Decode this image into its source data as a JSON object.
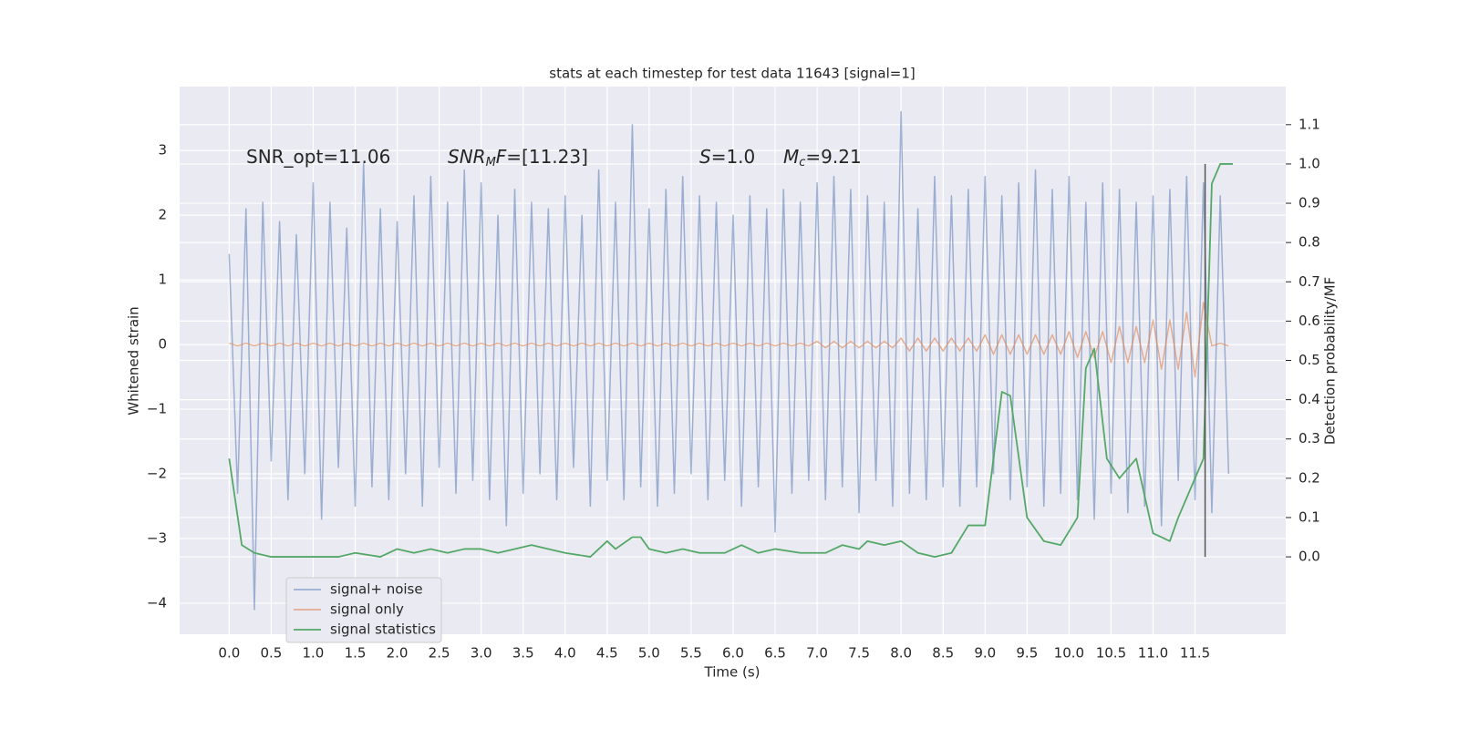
{
  "chart_data": {
    "type": "line",
    "title": "stats at each timestep for test data 11643 [signal=1]",
    "xlabel": "Time (s)",
    "ylabel": "Whitened strain",
    "y2label": "Detection probability/MF",
    "annotations": [
      [
        {
          "text": "SNR_opt=11.06"
        }
      ],
      [
        {
          "text": "SNR",
          "italic": true
        },
        {
          "text": "M",
          "italic": true,
          "sub": true
        },
        {
          "text": "F",
          "italic": true
        },
        {
          "text": "=[11.23]"
        }
      ],
      [
        {
          "text": "S",
          "italic": true
        },
        {
          "text": "=1.0"
        }
      ],
      [
        {
          "text": "M",
          "italic": true
        },
        {
          "text": "c",
          "italic": true,
          "sub": true
        },
        {
          "text": "=9.21"
        }
      ]
    ],
    "xlim": [
      -0.59,
      12.58
    ],
    "ylim": [
      -4.48,
      3.99
    ],
    "y2lim": [
      -0.197,
      1.197
    ],
    "xticks": [
      {
        "value": 0,
        "label": "0.0"
      },
      {
        "value": 0.5,
        "label": "0.5"
      },
      {
        "value": 1,
        "label": "1.0"
      },
      {
        "value": 1.5,
        "label": "1.5"
      },
      {
        "value": 2,
        "label": "2.0"
      },
      {
        "value": 2.5,
        "label": "2.5"
      },
      {
        "value": 3,
        "label": "3.0"
      },
      {
        "value": 3.5,
        "label": "3.5"
      },
      {
        "value": 4,
        "label": "4.0"
      },
      {
        "value": 4.5,
        "label": "4.5"
      },
      {
        "value": 5,
        "label": "5.0"
      },
      {
        "value": 5.5,
        "label": "5.5"
      },
      {
        "value": 6,
        "label": "6.0"
      },
      {
        "value": 6.5,
        "label": "6.5"
      },
      {
        "value": 7,
        "label": "7.0"
      },
      {
        "value": 7.5,
        "label": "7.5"
      },
      {
        "value": 8,
        "label": "8.0"
      },
      {
        "value": 8.5,
        "label": "8.5"
      },
      {
        "value": 9,
        "label": "9.0"
      },
      {
        "value": 9.5,
        "label": "9.5"
      },
      {
        "value": 10,
        "label": "10.0"
      },
      {
        "value": 10.5,
        "label": "10.5"
      },
      {
        "value": 11,
        "label": "11.0"
      },
      {
        "value": 11.5,
        "label": "11.5"
      }
    ],
    "yticks": [
      {
        "value": -4,
        "label": "−4"
      },
      {
        "value": -3,
        "label": "−3"
      },
      {
        "value": -2,
        "label": "−2"
      },
      {
        "value": -1,
        "label": "−1"
      },
      0,
      1,
      2,
      3
    ],
    "y2ticks": [
      {
        "value": 0,
        "label": "0.0"
      },
      {
        "value": 0.1,
        "label": "0.1"
      },
      {
        "value": 0.2,
        "label": "0.2"
      },
      {
        "value": 0.3,
        "label": "0.3"
      },
      {
        "value": 0.4,
        "label": "0.4"
      },
      {
        "value": 0.5,
        "label": "0.5"
      },
      {
        "value": 0.6,
        "label": "0.6"
      },
      {
        "value": 0.7,
        "label": "0.7"
      },
      {
        "value": 0.8,
        "label": "0.8"
      },
      {
        "value": 0.9,
        "label": "0.9"
      },
      {
        "value": 1,
        "label": "1.0"
      },
      {
        "value": 1.1,
        "label": "1.1"
      }
    ],
    "grid": true,
    "legend": "lower left",
    "x": [
      0.0,
      0.1,
      0.2,
      0.3,
      0.4,
      0.5,
      0.6,
      0.7,
      0.8,
      0.9,
      1.0,
      1.1,
      1.2,
      1.3,
      1.4,
      1.5,
      1.6,
      1.7,
      1.8,
      1.9,
      2.0,
      2.1,
      2.2,
      2.3,
      2.4,
      2.5,
      2.6,
      2.7,
      2.8,
      2.9,
      3.0,
      3.1,
      3.2,
      3.3,
      3.4,
      3.5,
      3.6,
      3.7,
      3.8,
      3.9,
      4.0,
      4.1,
      4.2,
      4.3,
      4.4,
      4.5,
      4.6,
      4.7,
      4.8,
      4.9,
      5.0,
      5.1,
      5.2,
      5.3,
      5.4,
      5.5,
      5.6,
      5.7,
      5.8,
      5.9,
      6.0,
      6.1,
      6.2,
      6.3,
      6.4,
      6.5,
      6.6,
      6.7,
      6.8,
      6.9,
      7.0,
      7.1,
      7.2,
      7.3,
      7.4,
      7.5,
      7.6,
      7.7,
      7.8,
      7.9,
      8.0,
      8.1,
      8.2,
      8.3,
      8.4,
      8.5,
      8.6,
      8.7,
      8.8,
      8.9,
      9.0,
      9.1,
      9.2,
      9.3,
      9.4,
      9.5,
      9.6,
      9.7,
      9.8,
      9.9,
      10.0,
      10.1,
      10.2,
      10.3,
      10.4,
      10.5,
      10.6,
      10.7,
      10.8,
      10.9,
      11.0,
      11.1,
      11.2,
      11.3,
      11.4,
      11.5,
      11.6,
      11.7,
      11.8,
      11.9
    ],
    "series": [
      {
        "name": "signal+ noise",
        "color": "#4c72b0",
        "opacity": 0.5,
        "values": [
          1.4,
          -2.3,
          2.1,
          -4.1,
          2.2,
          -1.8,
          1.9,
          -2.4,
          1.7,
          -2.0,
          2.5,
          -2.7,
          2.2,
          -1.9,
          1.8,
          -2.5,
          2.8,
          -2.2,
          2.1,
          -2.4,
          1.9,
          -2.0,
          2.3,
          -2.5,
          2.6,
          -1.9,
          2.2,
          -2.3,
          2.7,
          -2.1,
          2.5,
          -2.4,
          2.0,
          -2.8,
          2.4,
          -2.3,
          2.2,
          -2.0,
          2.1,
          -2.4,
          2.3,
          -1.9,
          2.0,
          -2.5,
          2.7,
          -2.1,
          2.2,
          -2.4,
          3.4,
          -2.2,
          2.1,
          -2.5,
          2.4,
          -2.3,
          2.6,
          -2.0,
          2.3,
          -2.4,
          2.2,
          -2.1,
          2.0,
          -2.5,
          2.3,
          -2.2,
          2.1,
          -2.9,
          2.4,
          -2.3,
          2.2,
          -2.1,
          2.5,
          -2.4,
          2.6,
          -2.2,
          2.4,
          -2.6,
          2.3,
          -2.1,
          2.2,
          -2.5,
          3.6,
          -2.3,
          2.1,
          -2.4,
          2.6,
          -2.2,
          2.3,
          -2.5,
          2.4,
          -2.2,
          2.6,
          -2.0,
          2.3,
          -2.4,
          2.5,
          -2.2,
          2.7,
          -2.5,
          2.4,
          -2.3,
          2.6,
          -2.4,
          2.2,
          -2.7,
          2.5,
          -2.3,
          2.4,
          -2.6,
          2.2,
          -2.5,
          2.3,
          -2.8,
          2.4,
          -2.1,
          2.6,
          -2.4,
          2.5,
          -2.6,
          2.3,
          -2.0
        ]
      },
      {
        "name": "signal only",
        "color": "#dd8452",
        "opacity": 0.6,
        "values": [
          0.02,
          -0.02,
          0.02,
          -0.02,
          0.02,
          -0.02,
          0.02,
          -0.02,
          0.02,
          -0.02,
          0.02,
          -0.02,
          0.02,
          -0.02,
          0.02,
          -0.02,
          0.02,
          -0.02,
          0.02,
          -0.02,
          0.02,
          -0.02,
          0.02,
          -0.02,
          0.02,
          -0.02,
          0.02,
          -0.02,
          0.02,
          -0.02,
          0.02,
          -0.02,
          0.02,
          -0.02,
          0.02,
          -0.02,
          0.02,
          -0.02,
          0.02,
          -0.02,
          0.02,
          -0.02,
          0.02,
          -0.02,
          0.02,
          -0.02,
          0.02,
          -0.02,
          0.02,
          -0.02,
          0.02,
          -0.02,
          0.02,
          -0.02,
          0.02,
          -0.02,
          0.02,
          -0.02,
          0.02,
          -0.02,
          0.02,
          -0.02,
          0.02,
          -0.02,
          0.02,
          -0.02,
          0.02,
          -0.02,
          0.02,
          -0.02,
          0.05,
          -0.05,
          0.05,
          -0.05,
          0.05,
          -0.05,
          0.05,
          -0.05,
          0.05,
          -0.05,
          0.1,
          -0.1,
          0.1,
          -0.1,
          0.1,
          -0.1,
          0.1,
          -0.1,
          0.1,
          -0.1,
          0.15,
          -0.15,
          0.15,
          -0.15,
          0.15,
          -0.15,
          0.15,
          -0.15,
          0.15,
          -0.15,
          0.2,
          -0.2,
          0.2,
          -0.2,
          0.2,
          -0.28,
          0.28,
          -0.28,
          0.28,
          -0.28,
          0.38,
          -0.38,
          0.38,
          -0.38,
          0.5,
          -0.5,
          0.65,
          -0.02,
          0.02,
          -0.02
        ]
      },
      {
        "name": "signal statistics",
        "color": "#55a868",
        "axis": "y2",
        "x": [
          0.0,
          0.15,
          0.3,
          0.5,
          0.8,
          1.0,
          1.3,
          1.5,
          1.8,
          2.0,
          2.2,
          2.4,
          2.6,
          2.8,
          3.0,
          3.2,
          3.4,
          3.6,
          3.8,
          4.0,
          4.3,
          4.5,
          4.6,
          4.8,
          4.9,
          5.0,
          5.2,
          5.4,
          5.6,
          5.9,
          6.1,
          6.3,
          6.5,
          6.8,
          7.1,
          7.3,
          7.5,
          7.6,
          7.8,
          8.0,
          8.2,
          8.4,
          8.6,
          8.8,
          9.0,
          9.2,
          9.3,
          9.5,
          9.7,
          9.9,
          10.1,
          10.2,
          10.3,
          10.45,
          10.6,
          10.8,
          11.0,
          11.2,
          11.3,
          11.5,
          11.6,
          11.7,
          11.8,
          11.95
        ],
        "values": [
          0.25,
          0.03,
          0.01,
          0.0,
          0.0,
          0.0,
          0.0,
          0.01,
          0.0,
          0.02,
          0.01,
          0.02,
          0.01,
          0.02,
          0.02,
          0.01,
          0.02,
          0.03,
          0.02,
          0.01,
          0.0,
          0.04,
          0.02,
          0.05,
          0.05,
          0.02,
          0.01,
          0.02,
          0.01,
          0.01,
          0.03,
          0.01,
          0.02,
          0.01,
          0.01,
          0.03,
          0.02,
          0.04,
          0.03,
          0.04,
          0.01,
          0.0,
          0.01,
          0.08,
          0.08,
          0.42,
          0.41,
          0.1,
          0.04,
          0.03,
          0.1,
          0.48,
          0.53,
          0.25,
          0.2,
          0.25,
          0.06,
          0.04,
          0.1,
          0.2,
          0.25,
          0.95,
          1.0,
          1.0
        ]
      }
    ],
    "vline": {
      "x": 11.62,
      "y2range": [
        0,
        1
      ],
      "color": "#555555"
    }
  }
}
